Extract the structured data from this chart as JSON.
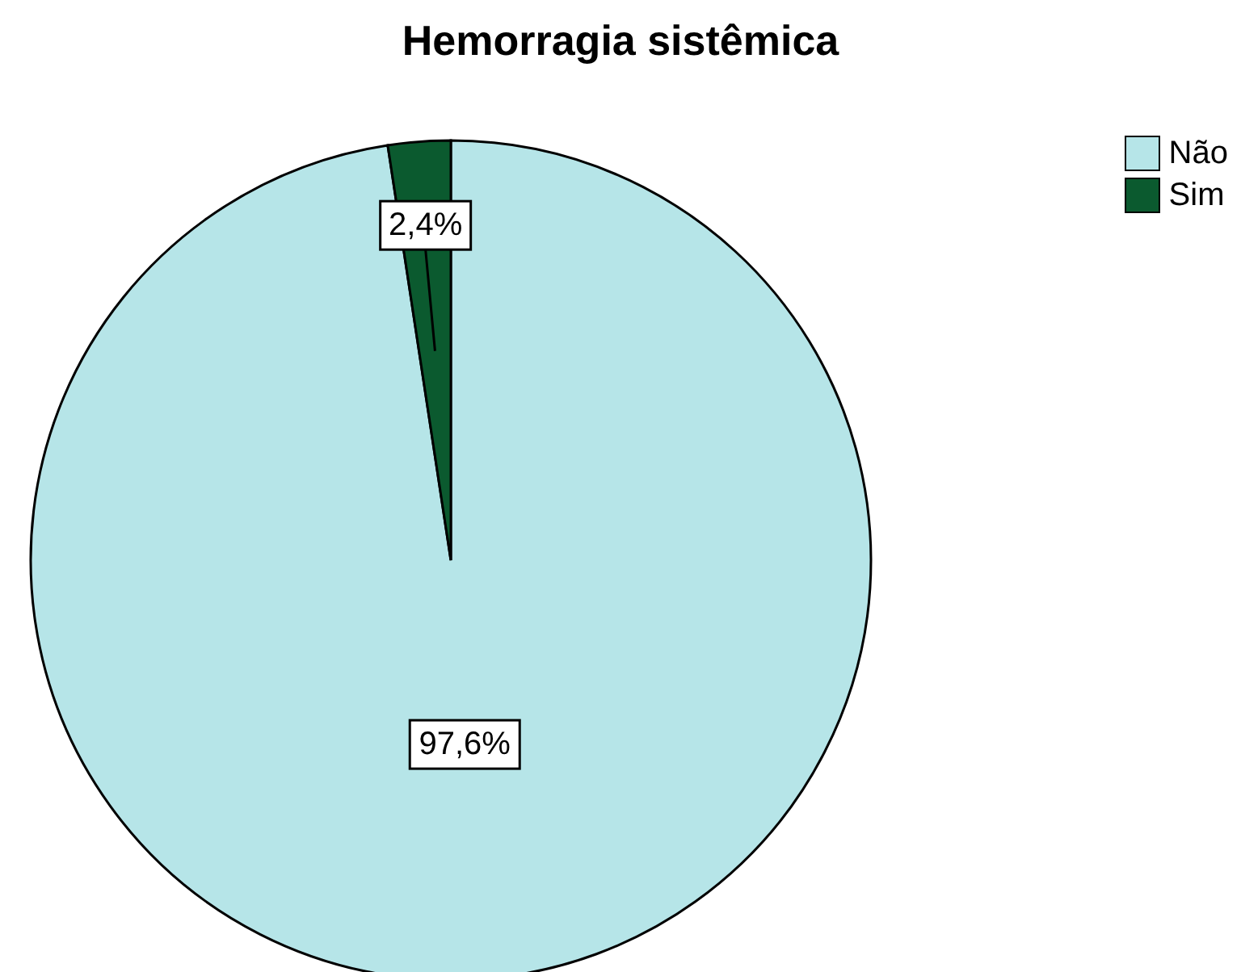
{
  "chart_data": {
    "type": "pie",
    "title": "Hemorragia sistêmica",
    "categories": [
      "Não",
      "Sim"
    ],
    "values": [
      97.6,
      2.4
    ],
    "colors": [
      "#b6e5e8",
      "#0b5a2f"
    ],
    "value_labels": [
      "97,6%",
      "2,4%"
    ],
    "legend": "top right"
  }
}
